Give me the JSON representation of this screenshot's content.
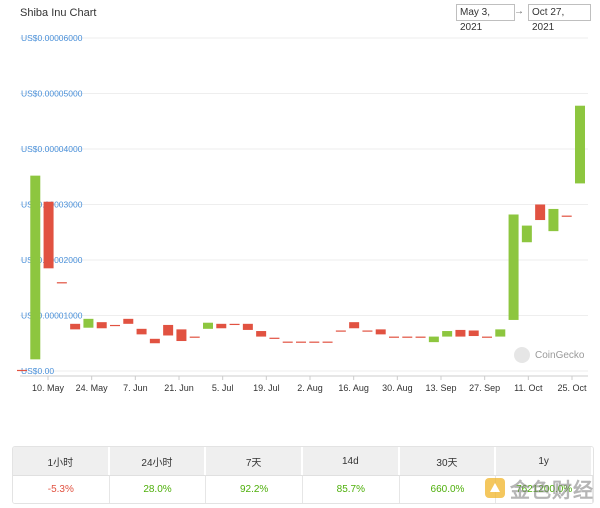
{
  "header": {
    "title": "Shiba Inu Chart",
    "date_start": "May 3, 2021",
    "date_arrow": "→",
    "date_end": "Oct 27, 2021"
  },
  "chart_data": {
    "type": "candlestick",
    "title": "Shiba Inu Chart",
    "y_ticks": [
      "US$0.00",
      "US$0.00001000",
      "US$0.00002000",
      "US$0.00003000",
      "US$0.00004000",
      "US$0.00005000",
      "US$0.00006000"
    ],
    "ylim": [
      0,
      6e-05
    ],
    "x_ticks": [
      "10. May",
      "24. May",
      "7. Jun",
      "21. Jun",
      "5. Jul",
      "19. Jul",
      "2. Aug",
      "16. Aug",
      "30. Aug",
      "13. Sep",
      "27. Sep",
      "11. Oct",
      "25. Oct"
    ],
    "grid": true,
    "colors": {
      "up": "#8dc63f",
      "down": "#e15241",
      "grid": "#eeeeee",
      "axis_label": "#4a90d9"
    },
    "watermark_inside": "CoinGecko",
    "candles": [
      {
        "open": 2e-07,
        "close": 2e-07
      },
      {
        "open": 2.1e-06,
        "close": 3.52e-05
      },
      {
        "open": 3.05e-05,
        "close": 1.85e-05
      },
      {
        "open": 1.6e-05,
        "close": 1.6e-05
      },
      {
        "open": 8.5e-06,
        "close": 7.5e-06
      },
      {
        "open": 7.8e-06,
        "close": 9.4e-06
      },
      {
        "open": 8.8e-06,
        "close": 7.7e-06
      },
      {
        "open": 8.3e-06,
        "close": 8.3e-06
      },
      {
        "open": 9.4e-06,
        "close": 8.5e-06
      },
      {
        "open": 7.6e-06,
        "close": 6.6e-06
      },
      {
        "open": 5.8e-06,
        "close": 5e-06
      },
      {
        "open": 8.3e-06,
        "close": 6.4e-06
      },
      {
        "open": 7.5e-06,
        "close": 5.4e-06
      },
      {
        "open": 6.2e-06,
        "close": 6.2e-06
      },
      {
        "open": 7.6e-06,
        "close": 8.7e-06
      },
      {
        "open": 8.5e-06,
        "close": 7.7e-06
      },
      {
        "open": 8.5e-06,
        "close": 8.5e-06
      },
      {
        "open": 8.5e-06,
        "close": 7.4e-06
      },
      {
        "open": 7.2e-06,
        "close": 6.2e-06
      },
      {
        "open": 6e-06,
        "close": 6e-06
      },
      {
        "open": 5.3e-06,
        "close": 5.3e-06
      },
      {
        "open": 5.3e-06,
        "close": 5.3e-06
      },
      {
        "open": 5.3e-06,
        "close": 5.3e-06
      },
      {
        "open": 5.3e-06,
        "close": 5.3e-06
      },
      {
        "open": 7.3e-06,
        "close": 7.3e-06
      },
      {
        "open": 8.8e-06,
        "close": 7.7e-06
      },
      {
        "open": 7.3e-06,
        "close": 7.3e-06
      },
      {
        "open": 7.5e-06,
        "close": 6.6e-06
      },
      {
        "open": 6.2e-06,
        "close": 6.2e-06
      },
      {
        "open": 6.2e-06,
        "close": 6.2e-06
      },
      {
        "open": 6.2e-06,
        "close": 6.2e-06
      },
      {
        "open": 5.2e-06,
        "close": 6.2e-06
      },
      {
        "open": 6.2e-06,
        "close": 7.2e-06
      },
      {
        "open": 7.4e-06,
        "close": 6.2e-06
      },
      {
        "open": 7.3e-06,
        "close": 6.3e-06
      },
      {
        "open": 6.2e-06,
        "close": 6.2e-06
      },
      {
        "open": 6.2e-06,
        "close": 7.5e-06
      },
      {
        "open": 9.2e-06,
        "close": 2.82e-05
      },
      {
        "open": 2.32e-05,
        "close": 2.62e-05
      },
      {
        "open": 3e-05,
        "close": 2.72e-05
      },
      {
        "open": 2.52e-05,
        "close": 2.92e-05
      },
      {
        "open": 2.8e-05,
        "close": 2.8e-05
      },
      {
        "open": 3.38e-05,
        "close": 4.78e-05
      }
    ]
  },
  "performance": {
    "headers": [
      "1小时",
      "24小时",
      "7天",
      "14d",
      "30天",
      "1y"
    ],
    "values": [
      "-5.3%",
      "28.0%",
      "92.2%",
      "85.7%",
      "660.0%",
      "7621200.0%"
    ],
    "value_signs": [
      "neg",
      "pos",
      "pos",
      "pos",
      "pos",
      "pos"
    ]
  },
  "watermark": "金色财经"
}
